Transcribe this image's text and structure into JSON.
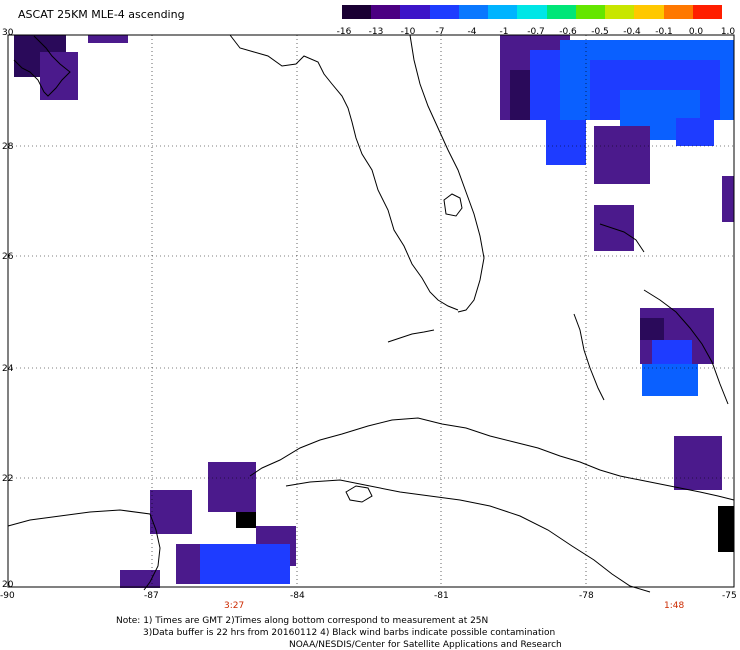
{
  "title": "ASCAT 25KM MLE-4 ascending",
  "colorbar": {
    "tick_labels": [
      "-16",
      "-13",
      "-10",
      "-7",
      "-4",
      "-1",
      "-0.7",
      "-0.6",
      "-0.5",
      "-0.4",
      "-0.1",
      "0.0",
      "1.0"
    ],
    "colors": [
      "#1a0033",
      "#4b0082",
      "#3c14c8",
      "#1e3cff",
      "#0a78ff",
      "#00b4ff",
      "#00e6e6",
      "#00e678",
      "#64e600",
      "#c8e600",
      "#ffc800",
      "#ff7800",
      "#ff1e00"
    ]
  },
  "map": {
    "lon_range": [
      -90,
      -75
    ],
    "lat_range": [
      20,
      30
    ],
    "x_tick_labels": [
      "-90",
      "-87",
      "-84",
      "-81",
      "-78",
      "-75"
    ],
    "y_tick_labels": [
      "30",
      "28",
      "26",
      "24",
      "22",
      "20"
    ],
    "pass_times": [
      {
        "label": "3:27",
        "lon": -85.5
      },
      {
        "label": "1:48",
        "lon": -75.6
      }
    ]
  },
  "notes": [
    "Note: 1) Times are GMT 2)Times along bottom correspond to measurement at 25N",
    "3)Data buffer is 22 hrs from 20160112 4) Black wind barbs indicate possible contamination",
    "NOAA/NESDIS/Center for Satellite Applications and Research"
  ]
}
